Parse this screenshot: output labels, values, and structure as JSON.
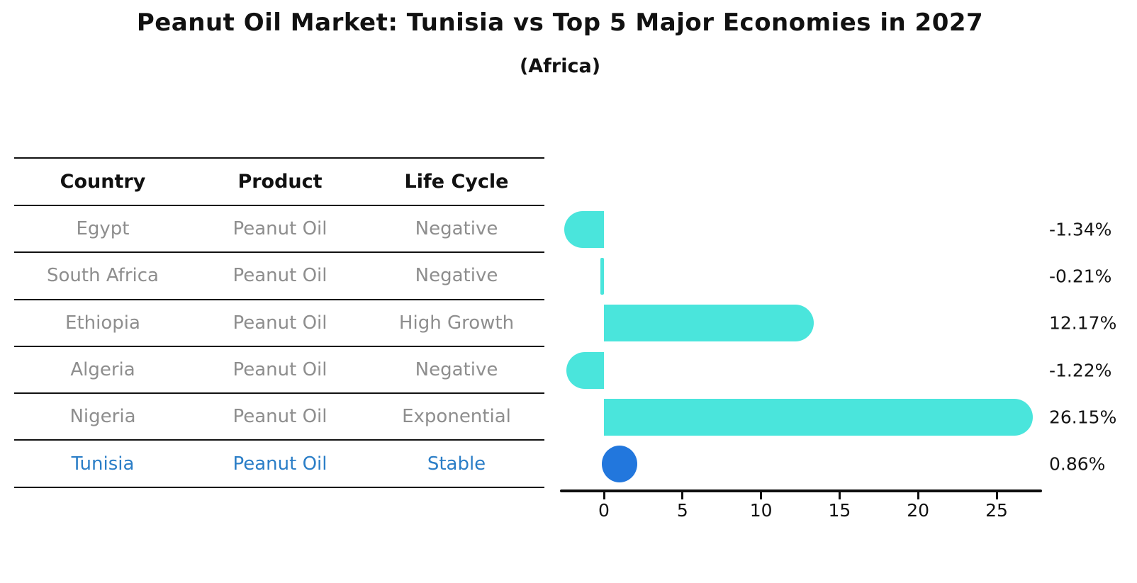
{
  "title": "Peanut Oil Market: Tunisia vs Top 5 Major Economies in 2027",
  "subtitle": "(Africa)",
  "table": {
    "columns": [
      "Country",
      "Product",
      "Life Cycle"
    ],
    "rows": [
      {
        "country": "Egypt",
        "product": "Peanut Oil",
        "life_cycle": "Negative",
        "highlight": false
      },
      {
        "country": "South Africa",
        "product": "Peanut Oil",
        "life_cycle": "Negative",
        "highlight": false
      },
      {
        "country": "Ethiopia",
        "product": "Peanut Oil",
        "life_cycle": "High Growth",
        "highlight": false
      },
      {
        "country": "Algeria",
        "product": "Peanut Oil",
        "life_cycle": "Negative",
        "highlight": false
      },
      {
        "country": "Nigeria",
        "product": "Peanut Oil",
        "life_cycle": "Exponential",
        "highlight": false
      },
      {
        "country": "Tunisia",
        "product": "Peanut Oil",
        "life_cycle": "Stable",
        "highlight": true
      }
    ]
  },
  "chart_data": {
    "type": "bar",
    "orientation": "horizontal",
    "title": "Peanut Oil Market: Tunisia vs Top 5 Major Economies in 2027",
    "subtitle": "(Africa)",
    "categories": [
      "Egypt",
      "South Africa",
      "Ethiopia",
      "Algeria",
      "Nigeria",
      "Tunisia"
    ],
    "values": [
      -1.34,
      -0.21,
      12.17,
      -1.22,
      26.15,
      0.86
    ],
    "value_labels": [
      "-1.34%",
      "-0.21%",
      "12.17%",
      "-1.22%",
      "26.15%",
      "0.86%"
    ],
    "highlight_category": "Tunisia",
    "x_ticks": [
      0,
      5,
      10,
      15,
      20,
      25
    ],
    "xlim": [
      -2.8,
      27.9
    ],
    "xlabel": "",
    "ylabel": "",
    "grid": false,
    "legend": false,
    "bar_color": "#4ae5dc",
    "highlight_color": "#2277dd"
  },
  "colors": {
    "bar": "#4ae5dc",
    "highlight_bar": "#2277dd",
    "table_text": "#8e8e8e",
    "highlight_text": "#2b7ec7",
    "axis": "#0e0e0e",
    "heading": "#111111"
  }
}
